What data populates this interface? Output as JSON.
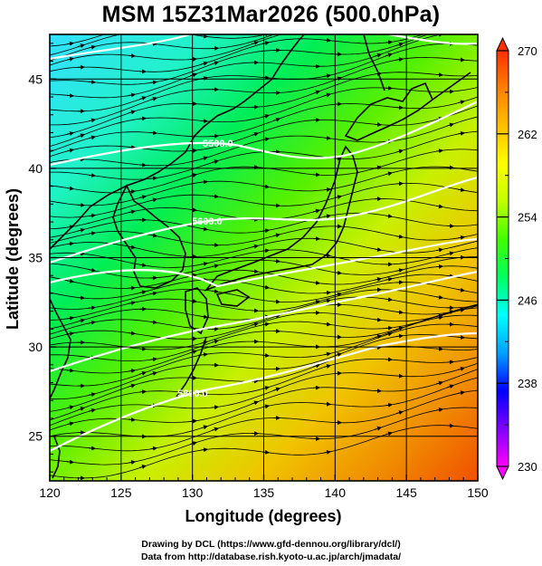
{
  "title": "MSM 15Z31Mar2026 (500.0hPa)",
  "x_axis": {
    "label": "Longitude (degrees)",
    "min": 120,
    "max": 150,
    "ticks": [
      120,
      125,
      130,
      135,
      140,
      145,
      150
    ],
    "tick_labels": [
      "120",
      "125",
      "130",
      "135",
      "140",
      "145",
      "150"
    ]
  },
  "y_axis": {
    "label": "Latitude  (degrees)",
    "min": 22.5,
    "max": 47.5,
    "ticks": [
      25,
      30,
      35,
      40,
      45
    ],
    "tick_labels": [
      "25",
      "30",
      "35",
      "40",
      "45"
    ]
  },
  "colorbar": {
    "min": 230,
    "max": 270,
    "tick_values": [
      230,
      238,
      246,
      254,
      262,
      270
    ],
    "tick_labels": [
      "230",
      "238",
      "246",
      "254",
      "262",
      "270"
    ],
    "colors": [
      "#ff00ff",
      "#8000ff",
      "#0000ff",
      "#00a0ff",
      "#00ffff",
      "#00ff60",
      "#40ff00",
      "#c0ff00",
      "#ffff00",
      "#ffc000",
      "#ff8000",
      "#ff3000"
    ]
  },
  "contours": {
    "labels": [
      "5500.0",
      "5600.0",
      "5800.0"
    ],
    "color": "#ffffff"
  },
  "credits": {
    "line1": "Drawing by DCL (https://www.gfd-dennou.org/library/dcl/)",
    "line2": "Data from http://database.rish.kyoto-u.ac.jp/arch/jmadata/"
  },
  "colors": {
    "frame": "#000000",
    "streamline": "#000000",
    "coast": "#000000"
  }
}
